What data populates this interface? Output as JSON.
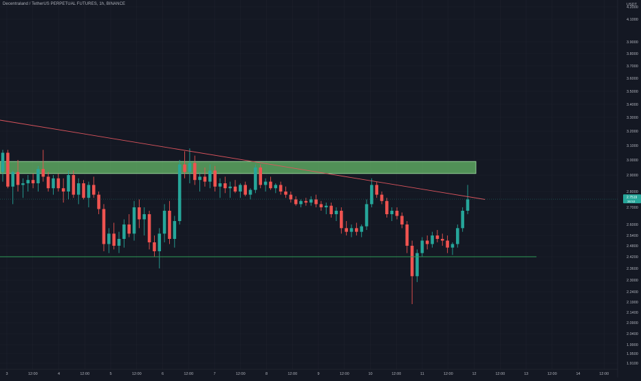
{
  "header": {
    "title": "Decentraland / TetherUS PERPETUAL FUTURES, 1h, BINANCE"
  },
  "colors": {
    "background": "#141823",
    "grid": "#1e222d",
    "axis_text": "#b2b5be",
    "bull": "#26a69a",
    "bear": "#ef5350",
    "trendline": "#e0555e",
    "support_line": "#2e9e58",
    "resistance_zone_fill": "#6abf6c",
    "resistance_zone_border": "#a6e3a8",
    "price_badge": "#26a69a"
  },
  "chart_data": {
    "type": "candlestick",
    "title": "Decentraland / TetherUS PERPETUAL FUTURES, 1h, BINANCE",
    "currency_label": "USDT",
    "ylim": [
      1.89,
      4.25
    ],
    "y_ticks": [
      "4.2000",
      "4.1000",
      "3.9000",
      "3.8000",
      "3.7000",
      "3.6000",
      "3.5000",
      "3.4000",
      "3.3000",
      "3.2000",
      "3.1000",
      "3.0000",
      "2.9000",
      "2.8000",
      "2.7000",
      "2.6000",
      "2.5400",
      "2.4800",
      "2.4200",
      "2.3600",
      "2.3000",
      "2.2400",
      "2.1900",
      "2.1400",
      "2.0900",
      "2.0400",
      "1.9900",
      "1.9500",
      "1.9100"
    ],
    "x_ticks": [
      "3",
      "12:00",
      "4",
      "12:00",
      "5",
      "12:00",
      "6",
      "12:00",
      "7",
      "12:00",
      "8",
      "12:00",
      "9",
      "12:00",
      "10",
      "12:00",
      "11",
      "12:00",
      "12",
      "12:00",
      "13",
      "12:00",
      "14",
      "12:00"
    ],
    "last_price": "2.7519",
    "last_price_sub": "36:53",
    "resistance_zone": [
      2.91,
      2.99
    ],
    "support_level": 2.42,
    "trendline": {
      "from": [
        "3",
        3.28
      ],
      "to": [
        "12 12:00",
        2.75
      ]
    },
    "grid": true,
    "candles": [
      [
        2.92,
        3.07,
        2.86,
        3.05
      ],
      [
        3.05,
        3.07,
        2.82,
        2.83
      ],
      [
        2.83,
        2.93,
        2.72,
        2.92
      ],
      [
        2.92,
        3.0,
        2.8,
        2.84
      ],
      [
        2.84,
        2.88,
        2.76,
        2.85
      ],
      [
        2.85,
        2.9,
        2.8,
        2.87
      ],
      [
        2.87,
        2.91,
        2.82,
        2.85
      ],
      [
        2.85,
        2.96,
        2.8,
        2.94
      ],
      [
        2.94,
        3.07,
        2.86,
        2.89
      ],
      [
        2.89,
        2.92,
        2.8,
        2.82
      ],
      [
        2.82,
        2.9,
        2.78,
        2.88
      ],
      [
        2.88,
        2.91,
        2.8,
        2.82
      ],
      [
        2.82,
        2.88,
        2.73,
        2.8
      ],
      [
        2.8,
        2.93,
        2.75,
        2.9
      ],
      [
        2.9,
        2.93,
        2.76,
        2.78
      ],
      [
        2.78,
        2.88,
        2.72,
        2.85
      ],
      [
        2.85,
        2.87,
        2.75,
        2.76
      ],
      [
        2.76,
        2.86,
        2.7,
        2.84
      ],
      [
        2.84,
        2.89,
        2.76,
        2.78
      ],
      [
        2.78,
        2.8,
        2.66,
        2.69
      ],
      [
        2.69,
        2.72,
        2.45,
        2.49
      ],
      [
        2.49,
        2.58,
        2.44,
        2.55
      ],
      [
        2.55,
        2.61,
        2.46,
        2.48
      ],
      [
        2.48,
        2.56,
        2.44,
        2.52
      ],
      [
        2.52,
        2.63,
        2.47,
        2.6
      ],
      [
        2.6,
        2.66,
        2.53,
        2.55
      ],
      [
        2.55,
        2.74,
        2.51,
        2.7
      ],
      [
        2.7,
        2.75,
        2.58,
        2.63
      ],
      [
        2.63,
        2.7,
        2.54,
        2.66
      ],
      [
        2.66,
        2.68,
        2.46,
        2.5
      ],
      [
        2.5,
        2.54,
        2.42,
        2.45
      ],
      [
        2.45,
        2.58,
        2.36,
        2.55
      ],
      [
        2.55,
        2.72,
        2.5,
        2.68
      ],
      [
        2.68,
        2.74,
        2.49,
        2.52
      ],
      [
        2.52,
        2.65,
        2.47,
        2.62
      ],
      [
        2.62,
        3.0,
        2.6,
        2.97
      ],
      [
        2.97,
        3.06,
        2.88,
        2.92
      ],
      [
        2.92,
        3.08,
        2.85,
        2.98
      ],
      [
        2.98,
        3.03,
        2.84,
        2.87
      ],
      [
        2.87,
        2.92,
        2.8,
        2.89
      ],
      [
        2.89,
        2.95,
        2.83,
        2.86
      ],
      [
        2.86,
        2.97,
        2.82,
        2.93
      ],
      [
        2.93,
        2.96,
        2.8,
        2.83
      ],
      [
        2.83,
        2.88,
        2.76,
        2.85
      ],
      [
        2.85,
        2.89,
        2.79,
        2.82
      ],
      [
        2.82,
        2.86,
        2.76,
        2.83
      ],
      [
        2.83,
        2.87,
        2.79,
        2.8
      ],
      [
        2.8,
        2.85,
        2.76,
        2.84
      ],
      [
        2.84,
        2.86,
        2.77,
        2.78
      ],
      [
        2.78,
        2.82,
        2.75,
        2.81
      ],
      [
        2.81,
        2.97,
        2.79,
        2.95
      ],
      [
        2.95,
        2.97,
        2.82,
        2.84
      ],
      [
        2.84,
        2.88,
        2.8,
        2.86
      ],
      [
        2.86,
        2.89,
        2.81,
        2.82
      ],
      [
        2.82,
        2.85,
        2.79,
        2.84
      ],
      [
        2.84,
        2.86,
        2.78,
        2.8
      ],
      [
        2.8,
        2.83,
        2.76,
        2.78
      ],
      [
        2.78,
        2.8,
        2.73,
        2.75
      ],
      [
        2.75,
        2.77,
        2.71,
        2.72
      ],
      [
        2.72,
        2.75,
        2.7,
        2.74
      ],
      [
        2.74,
        2.76,
        2.71,
        2.73
      ],
      [
        2.73,
        2.77,
        2.71,
        2.75
      ],
      [
        2.75,
        2.78,
        2.7,
        2.72
      ],
      [
        2.72,
        2.74,
        2.68,
        2.7
      ],
      [
        2.7,
        2.73,
        2.66,
        2.71
      ],
      [
        2.71,
        2.73,
        2.64,
        2.66
      ],
      [
        2.66,
        2.7,
        2.62,
        2.68
      ],
      [
        2.68,
        2.7,
        2.55,
        2.58
      ],
      [
        2.58,
        2.62,
        2.54,
        2.56
      ],
      [
        2.56,
        2.6,
        2.53,
        2.58
      ],
      [
        2.58,
        2.61,
        2.54,
        2.56
      ],
      [
        2.56,
        2.6,
        2.53,
        2.59
      ],
      [
        2.59,
        2.75,
        2.57,
        2.72
      ],
      [
        2.72,
        2.88,
        2.7,
        2.84
      ],
      [
        2.84,
        2.86,
        2.76,
        2.78
      ],
      [
        2.78,
        2.8,
        2.72,
        2.74
      ],
      [
        2.74,
        2.76,
        2.64,
        2.66
      ],
      [
        2.66,
        2.7,
        2.62,
        2.68
      ],
      [
        2.68,
        2.7,
        2.63,
        2.65
      ],
      [
        2.65,
        2.67,
        2.58,
        2.6
      ],
      [
        2.6,
        2.62,
        2.44,
        2.48
      ],
      [
        2.48,
        2.51,
        2.18,
        2.32
      ],
      [
        2.32,
        2.46,
        2.29,
        2.44
      ],
      [
        2.44,
        2.53,
        2.42,
        2.51
      ],
      [
        2.51,
        2.54,
        2.46,
        2.49
      ],
      [
        2.49,
        2.56,
        2.47,
        2.54
      ],
      [
        2.54,
        2.57,
        2.5,
        2.52
      ],
      [
        2.52,
        2.55,
        2.48,
        2.51
      ],
      [
        2.51,
        2.54,
        2.44,
        2.47
      ],
      [
        2.47,
        2.5,
        2.43,
        2.49
      ],
      [
        2.49,
        2.6,
        2.47,
        2.58
      ],
      [
        2.58,
        2.7,
        2.56,
        2.68
      ],
      [
        2.68,
        2.84,
        2.66,
        2.75
      ]
    ]
  }
}
